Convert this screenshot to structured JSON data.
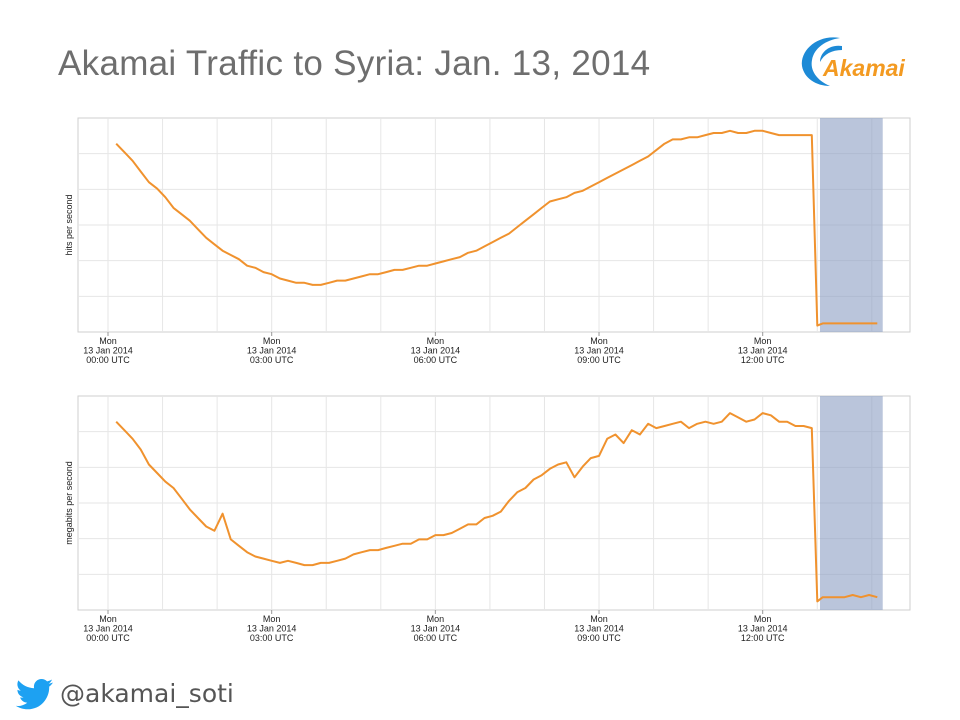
{
  "slide": {
    "title": "Akamai Traffic to Syria: Jan. 13, 2014",
    "logo_text": "Akamai",
    "twitter_handle": "@akamai_soti"
  },
  "colors": {
    "line": "#f0922e",
    "highlight": "#8c9fc3",
    "grid": "#e6e6e6",
    "logo_blue": "#1d8ad6",
    "logo_orange": "#f39a21",
    "twitter_blue": "#1da1f2"
  },
  "chart_data": [
    {
      "type": "line",
      "ylabel": "hits per second",
      "y_tick_labels": "none",
      "x_ticks": [
        {
          "x": 0,
          "lines": [
            "Mon",
            "13 Jan 2014",
            "00:00 UTC"
          ]
        },
        {
          "x": 3,
          "lines": [
            "Mon",
            "13 Jan 2014",
            "03:00 UTC"
          ]
        },
        {
          "x": 6,
          "lines": [
            "Mon",
            "13 Jan 2014",
            "06:00 UTC"
          ]
        },
        {
          "x": 9,
          "lines": [
            "Mon",
            "13 Jan 2014",
            "09:00 UTC"
          ]
        },
        {
          "x": 12,
          "lines": [
            "Mon",
            "13 Jan 2014",
            "12:00 UTC"
          ]
        }
      ],
      "xlim": [
        -0.55,
        14.7
      ],
      "ylim": [
        0,
        100
      ],
      "highlight_range": [
        13.05,
        14.2
      ],
      "grid": true,
      "series": [
        {
          "x": [
            0.15,
            0.3,
            0.45,
            0.6,
            0.75,
            0.9,
            1.05,
            1.2,
            1.35,
            1.5,
            1.65,
            1.8,
            1.95,
            2.1,
            2.25,
            2.4,
            2.55,
            2.7,
            2.85,
            3.0,
            3.15,
            3.3,
            3.45,
            3.6,
            3.75,
            3.9,
            4.05,
            4.2,
            4.35,
            4.5,
            4.65,
            4.8,
            4.95,
            5.1,
            5.25,
            5.4,
            5.55,
            5.7,
            5.85,
            6.0,
            6.15,
            6.3,
            6.45,
            6.6,
            6.75,
            6.9,
            7.05,
            7.2,
            7.35,
            7.5,
            7.65,
            7.8,
            7.95,
            8.1,
            8.25,
            8.4,
            8.55,
            8.7,
            8.85,
            9.0,
            9.15,
            9.3,
            9.45,
            9.6,
            9.75,
            9.9,
            10.05,
            10.2,
            10.35,
            10.5,
            10.65,
            10.8,
            10.95,
            11.1,
            11.25,
            11.4,
            11.55,
            11.7,
            11.85,
            12.0,
            12.15,
            12.3,
            12.45,
            12.6,
            12.75,
            12.9,
            13.0,
            13.1,
            13.2,
            13.35,
            13.5,
            13.65,
            13.8,
            13.95,
            14.1
          ],
          "y": [
            88,
            84,
            80,
            75,
            70,
            67,
            63,
            58,
            55,
            52,
            48,
            44,
            41,
            38,
            36,
            34,
            31,
            30,
            28,
            27,
            25,
            24,
            23,
            23,
            22,
            22,
            23,
            24,
            24,
            25,
            26,
            27,
            27,
            28,
            29,
            29,
            30,
            31,
            31,
            32,
            33,
            34,
            35,
            37,
            38,
            40,
            42,
            44,
            46,
            49,
            52,
            55,
            58,
            61,
            62,
            63,
            65,
            66,
            68,
            70,
            72,
            74,
            76,
            78,
            80,
            82,
            85,
            88,
            90,
            90,
            91,
            91,
            92,
            93,
            93,
            94,
            93,
            93,
            94,
            94,
            93,
            92,
            92,
            92,
            92,
            92,
            3,
            4,
            4,
            4,
            4,
            4,
            4,
            4,
            4
          ]
        }
      ]
    },
    {
      "type": "line",
      "ylabel": "megabits per second",
      "y_tick_labels": "none",
      "x_ticks": [
        {
          "x": 0,
          "lines": [
            "Mon",
            "13 Jan 2014",
            "00:00 UTC"
          ]
        },
        {
          "x": 3,
          "lines": [
            "Mon",
            "13 Jan 2014",
            "03:00 UTC"
          ]
        },
        {
          "x": 6,
          "lines": [
            "Mon",
            "13 Jan 2014",
            "06:00 UTC"
          ]
        },
        {
          "x": 9,
          "lines": [
            "Mon",
            "13 Jan 2014",
            "09:00 UTC"
          ]
        },
        {
          "x": 12,
          "lines": [
            "Mon",
            "13 Jan 2014",
            "12:00 UTC"
          ]
        }
      ],
      "xlim": [
        -0.55,
        14.7
      ],
      "ylim": [
        0,
        100
      ],
      "highlight_range": [
        13.05,
        14.2
      ],
      "grid": true,
      "series": [
        {
          "x": [
            0.15,
            0.3,
            0.45,
            0.6,
            0.75,
            0.9,
            1.05,
            1.2,
            1.35,
            1.5,
            1.65,
            1.8,
            1.95,
            2.1,
            2.25,
            2.4,
            2.55,
            2.7,
            2.85,
            3.0,
            3.15,
            3.3,
            3.45,
            3.6,
            3.75,
            3.9,
            4.05,
            4.2,
            4.35,
            4.5,
            4.65,
            4.8,
            4.95,
            5.1,
            5.25,
            5.4,
            5.55,
            5.7,
            5.85,
            6.0,
            6.15,
            6.3,
            6.45,
            6.6,
            6.75,
            6.9,
            7.05,
            7.2,
            7.35,
            7.5,
            7.65,
            7.8,
            7.95,
            8.1,
            8.25,
            8.4,
            8.55,
            8.7,
            8.85,
            9.0,
            9.15,
            9.3,
            9.45,
            9.6,
            9.75,
            9.9,
            10.05,
            10.2,
            10.35,
            10.5,
            10.65,
            10.8,
            10.95,
            11.1,
            11.25,
            11.4,
            11.55,
            11.7,
            11.85,
            12.0,
            12.15,
            12.3,
            12.45,
            12.6,
            12.75,
            12.9,
            13.0,
            13.1,
            13.2,
            13.35,
            13.5,
            13.65,
            13.8,
            13.95,
            14.1
          ],
          "y": [
            88,
            84,
            80,
            75,
            68,
            64,
            60,
            57,
            52,
            47,
            43,
            39,
            37,
            45,
            33,
            30,
            27,
            25,
            24,
            23,
            22,
            23,
            22,
            21,
            21,
            22,
            22,
            23,
            24,
            26,
            27,
            28,
            28,
            29,
            30,
            31,
            31,
            33,
            33,
            35,
            35,
            36,
            38,
            40,
            40,
            43,
            44,
            46,
            51,
            55,
            57,
            61,
            63,
            66,
            68,
            69,
            62,
            67,
            71,
            72,
            80,
            82,
            78,
            84,
            82,
            87,
            85,
            86,
            87,
            88,
            85,
            87,
            88,
            87,
            88,
            92,
            90,
            88,
            89,
            92,
            91,
            88,
            88,
            86,
            86,
            85,
            4,
            6,
            6,
            6,
            6,
            7,
            6,
            7,
            6
          ]
        }
      ]
    }
  ]
}
